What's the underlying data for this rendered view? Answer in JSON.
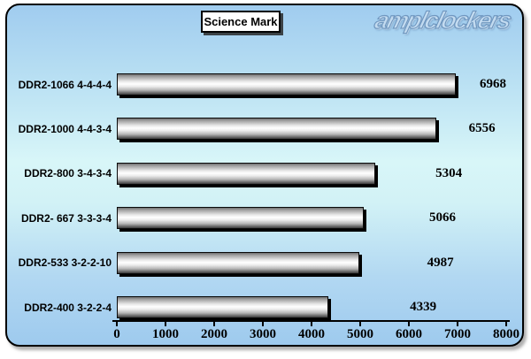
{
  "watermark": {
    "text": "amplclockers"
  },
  "title_box": {
    "label": "Science Mark"
  },
  "colors": {
    "page_background": "#ffffff",
    "chart_background_top": "#a0ccef",
    "chart_background_middle": "#d8f6f8",
    "chart_background_bottom": "#9ecaee",
    "chart_border": "#000000",
    "bar_highlight": "#ffffff",
    "bar_mid_gray": "#9d9d9d",
    "bar_dark": "#3c3c3c",
    "bar_shadow": "#000000",
    "text": "#000000",
    "title_background": "#ffffff",
    "watermark_fill": "#c5dcf0",
    "watermark_outline": "#6e95be"
  },
  "chart_data": {
    "type": "bar",
    "orientation": "horizontal",
    "title": "Science Mark",
    "xlabel": "",
    "ylabel": "",
    "categories": [
      "DDR2-1066 4-4-4-4",
      "DDR2-1000 4-4-3-4",
      "DDR2-800 3-4-3-4",
      "DDR2- 667 3-3-3-4",
      "DDR2-533 3-2-2-10",
      "DDR2-400 3-2-2-4"
    ],
    "values": [
      6968,
      6556,
      5304,
      5066,
      4987,
      4339
    ],
    "value_labels": [
      "6968",
      "6556",
      "5304",
      "5066",
      "4987",
      "4339"
    ],
    "xlim": [
      0,
      8000
    ],
    "x_ticks": [
      0,
      1000,
      2000,
      3000,
      4000,
      5000,
      6000,
      7000,
      8000
    ],
    "x_tick_labels": [
      "0",
      "1000",
      "2000",
      "3000",
      "4000",
      "5000",
      "6000",
      "7000",
      "8000"
    ],
    "grid": false,
    "legend": false,
    "bar_style": "metallic-cylinder-with-black-drop-shadow"
  }
}
